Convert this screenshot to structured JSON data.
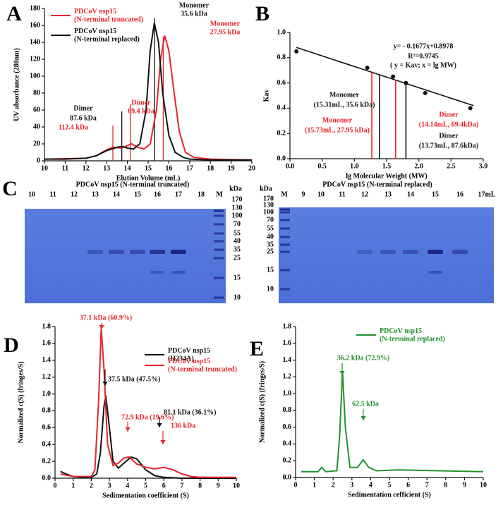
{
  "chart_data": [
    {
      "type": "line",
      "panel": "A",
      "xlabel": "Elution Volume (mL)",
      "ylabel": "UV absorbance (280nm)",
      "xlim": [
        10,
        20
      ],
      "xticks": [
        10,
        11,
        12,
        13,
        14,
        15,
        16,
        17,
        18,
        19,
        20
      ],
      "ylim": [
        0,
        180
      ],
      "yticks": [
        0,
        20,
        40,
        60,
        80,
        100,
        120,
        140,
        160,
        180
      ],
      "series": [
        {
          "name": "PDCoV nsp15 (N-terminal truncated)",
          "color": "#e8242a",
          "x": [
            10,
            12,
            12.5,
            13,
            13.3,
            13.7,
            14,
            14.2,
            14.5,
            14.8,
            15.1,
            15.4,
            15.6,
            15.8,
            16,
            16.2,
            16.5,
            16.8,
            17.2,
            18,
            20
          ],
          "values": [
            2,
            3,
            6,
            13,
            16,
            15,
            18,
            20,
            16,
            14,
            20,
            60,
            120,
            148,
            130,
            90,
            35,
            10,
            4,
            2,
            1
          ]
        },
        {
          "name": "PDCoV nsp15 (N-terminal replaced)",
          "color": "#111111",
          "x": [
            10,
            11,
            12,
            12.5,
            13,
            13.5,
            13.75,
            14,
            14.3,
            14.6,
            14.9,
            15.1,
            15.3,
            15.5,
            15.7,
            16,
            16.3,
            16.7,
            17,
            18,
            20
          ],
          "values": [
            2,
            2,
            3,
            6,
            12,
            16,
            17,
            15,
            14,
            20,
            60,
            130,
            163,
            140,
            80,
            30,
            10,
            4,
            2,
            1,
            1
          ]
        }
      ],
      "markers": [
        {
          "x": 13.3,
          "color": "#e8242a"
        },
        {
          "x": 13.73,
          "color": "#111111"
        },
        {
          "x": 14.14,
          "color": "#e8242a"
        },
        {
          "x": 15.31,
          "color": "#111111"
        },
        {
          "x": 15.73,
          "color": "#e8242a"
        }
      ],
      "annotations": [
        {
          "text": "Monomer",
          "color": "#111111"
        },
        {
          "text": "35.6 kDa",
          "color": "#111111"
        },
        {
          "text": "Monomer",
          "color": "#e8242a"
        },
        {
          "text": "27.95 kDa",
          "color": "#e8242a"
        },
        {
          "text": "Dimer",
          "color": "#111111"
        },
        {
          "text": "87.6 kDa",
          "color": "#111111"
        },
        {
          "text": "Dimer",
          "color": "#e8242a"
        },
        {
          "text": "69.4 kDa",
          "color": "#e8242a"
        },
        {
          "text": "112.4 kDa",
          "color": "#e8242a"
        }
      ]
    },
    {
      "type": "scatter",
      "panel": "B",
      "xlabel": "lg Molecular Weight (MW)",
      "ylabel": "Kav",
      "xlim": [
        0,
        3
      ],
      "xticks": [
        {
          "value": 0,
          "label": "0.0"
        },
        0.5,
        {
          "value": 1,
          "label": "1.0"
        },
        1.5,
        {
          "value": 2,
          "label": "2.0"
        },
        2.5,
        {
          "value": 3,
          "label": "3.0"
        }
      ],
      "ylim": [
        0,
        1
      ],
      "yticks": [
        {
          "value": 0,
          "label": "0.0"
        },
        0.2,
        0.4,
        0.6,
        0.8,
        {
          "value": 1,
          "label": "1.0"
        }
      ],
      "points": {
        "color": "#111111",
        "x": [
          0.1,
          1.2,
          1.6,
          1.8,
          2.1,
          2.8
        ],
        "values": [
          0.85,
          0.72,
          0.65,
          0.6,
          0.52,
          0.4
        ]
      },
      "fit": {
        "color": "#111111",
        "x": [
          0.1,
          2.85
        ],
        "values": [
          0.881,
          0.42
        ]
      },
      "markers": [
        {
          "x": 1.27,
          "y": 0.685,
          "color": "#e8242a"
        },
        {
          "x": 1.39,
          "y": 0.665,
          "color": "#111111"
        },
        {
          "x": 1.64,
          "y": 0.625,
          "color": "#e8242a"
        },
        {
          "x": 1.8,
          "y": 0.595,
          "color": "#111111"
        }
      ],
      "annotations": [
        {
          "text": "y= - 0.1677x+0.8978",
          "color": "#111111"
        },
        {
          "text": "R²=0.9745",
          "color": "#111111"
        },
        {
          "text": "( y = Kav; x = lg MW)",
          "color": "#111111"
        },
        {
          "text": "Monomer",
          "color": "#111111"
        },
        {
          "text": "(15.31mL, 35.6 kDa)",
          "color": "#111111"
        },
        {
          "text": "Monomer",
          "color": "#e8242a"
        },
        {
          "text": "(15.73mL, 27.95 kDa)",
          "color": "#e8242a"
        },
        {
          "text": "Dimer",
          "color": "#e8242a"
        },
        {
          "text": "(14.14mL, 69.4kDa)",
          "color": "#e8242a"
        },
        {
          "text": "Dimer",
          "color": "#111111"
        },
        {
          "text": "(13.73mL, 87.6kDa)",
          "color": "#111111"
        }
      ]
    },
    {
      "type": "line",
      "panel": "D",
      "xlabel": "Sedimentation coefficient (S)",
      "ylabel": "Normalized c(S) (fringes/S)",
      "xlim": [
        0,
        10
      ],
      "xticks": [
        0,
        1,
        2,
        3,
        4,
        5,
        6,
        7,
        8,
        9,
        10
      ],
      "ylim": [
        0,
        1.8
      ],
      "yticks": [
        {
          "value": 0,
          "label": "0.0"
        },
        0.2,
        0.4,
        0.6,
        0.8,
        {
          "value": 1,
          "label": "1.0"
        },
        1.2,
        1.4,
        1.6,
        1.8
      ],
      "series": [
        {
          "name": "PDCoV nsp15 (H234A)",
          "color": "#111111",
          "x": [
            0.3,
            0.6,
            1,
            1.5,
            2,
            2.3,
            2.5,
            2.7,
            2.8,
            3,
            3.2,
            3.5,
            3.8,
            4.2,
            4.5,
            5,
            5.5,
            6,
            7,
            10
          ],
          "values": [
            0.08,
            0.05,
            0.02,
            0.01,
            0.01,
            0.05,
            0.3,
            0.85,
            0.98,
            0.6,
            0.2,
            0.12,
            0.18,
            0.25,
            0.23,
            0.1,
            0.03,
            0.01,
            0,
            0
          ]
        },
        {
          "name": "PDCoV nsp15 (N-terminal truncated)",
          "color": "#e8242a",
          "x": [
            0.3,
            1,
            2,
            2.2,
            2.4,
            2.55,
            2.7,
            2.9,
            3.2,
            3.5,
            3.8,
            4.1,
            4.5,
            5,
            5.5,
            6,
            6.5,
            7,
            7.5,
            8,
            10
          ],
          "values": [
            0.05,
            0.02,
            0.02,
            0.1,
            0.9,
            1.78,
            1.3,
            0.4,
            0.15,
            0.18,
            0.24,
            0.25,
            0.17,
            0.13,
            0.11,
            0.13,
            0.1,
            0.05,
            0.02,
            0.01,
            0.01
          ]
        }
      ],
      "annotations": [
        {
          "text": "37.1 kDa (60.9%)",
          "color": "#e8242a"
        },
        {
          "text": "37.5 kDa (47.5%)",
          "color": "#111111"
        },
        {
          "text": "72.9 kDa (19.6%)",
          "color": "#e8242a"
        },
        {
          "text": "81.1 kDa (36.1%)",
          "color": "#111111"
        },
        {
          "text": "136 kDa",
          "color": "#e8242a"
        }
      ]
    },
    {
      "type": "line",
      "panel": "E",
      "xlabel": "Sedimentation cefficient (S)",
      "ylabel": "Normalized c(S) (fringes/S)",
      "xlim": [
        0,
        10
      ],
      "xticks": [
        0,
        1,
        2,
        3,
        4,
        5,
        6,
        7,
        8,
        9,
        10
      ],
      "ylim": [
        0,
        1.8
      ],
      "yticks": [
        {
          "value": 0,
          "label": "0.0"
        },
        0.2,
        0.4,
        0.6,
        0.8,
        {
          "value": 1,
          "label": "1.0"
        },
        1.2,
        1.4,
        1.6,
        1.8
      ],
      "series": [
        {
          "name": "PDCoV nsp15 (N-terminal replaced)",
          "color": "#23912b",
          "x": [
            0.3,
            1.2,
            1.4,
            1.6,
            2.2,
            2.35,
            2.5,
            2.65,
            2.9,
            3.3,
            3.6,
            3.9,
            4.3,
            5.5,
            10
          ],
          "values": [
            0.07,
            0.07,
            0.12,
            0.07,
            0.08,
            0.5,
            1.27,
            0.6,
            0.12,
            0.12,
            0.21,
            0.12,
            0.08,
            0.09,
            0.07
          ]
        }
      ],
      "annotations": [
        {
          "text": "36.2 kDa (72.9%)",
          "color": "#23912b"
        },
        {
          "text": "62.5 kDa",
          "color": "#23912b"
        }
      ]
    }
  ],
  "gels": [
    {
      "panel": "C",
      "title": "PDCoV nsp15 (N-terminal truncated)",
      "lanes": [
        "10",
        "11",
        "12",
        "13",
        "14",
        "15",
        "16",
        "17",
        "18",
        "M"
      ],
      "unit": "kDa",
      "sizes": [
        170,
        130,
        100,
        70,
        55,
        40,
        35,
        25,
        15,
        10
      ]
    },
    {
      "title": "PDCoV nsp15 (N-terminal replaced)",
      "lanes": [
        "M",
        "9",
        "10",
        "11",
        "12",
        "13",
        "14",
        "15",
        "16",
        "17mL"
      ],
      "unit": "kDa",
      "sizes": [
        170,
        130,
        100,
        70,
        55,
        40,
        35,
        25,
        15,
        10
      ]
    }
  ]
}
